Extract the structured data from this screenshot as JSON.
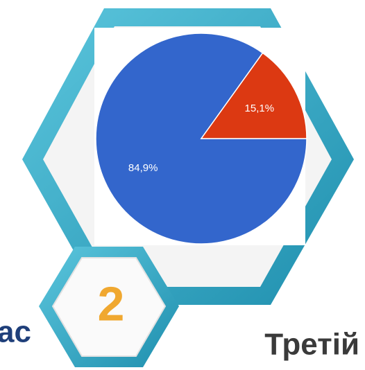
{
  "chart_data": {
    "type": "pie",
    "series": [
      {
        "name": null,
        "values": [
          84.9,
          15.1
        ],
        "value_labels": [
          "84,9%",
          "15,1%"
        ],
        "colors": [
          "#3366cc",
          "#dc3912"
        ]
      }
    ]
  },
  "badge": "2",
  "left_text": "ас",
  "right_text": "Третій"
}
